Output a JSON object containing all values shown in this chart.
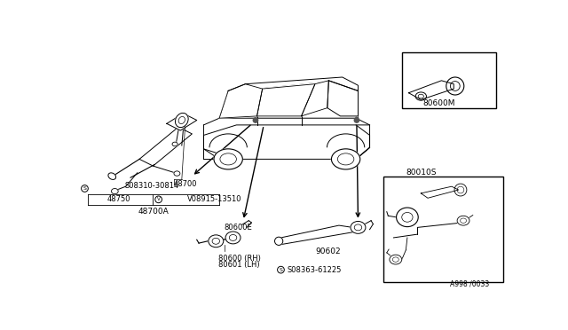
{
  "bg_color": "#ffffff",
  "text_color": "#000000",
  "fig_width": 6.4,
  "fig_height": 3.72,
  "dpi": 100,
  "labels": {
    "s08310": "S08310-30814",
    "p48700": "48700",
    "p48750": "48750",
    "v08915": "V08915-13510",
    "p48700A": "48700A",
    "p80600E": "80600E",
    "p80600": "80600 (RH)",
    "p80601": "80601 (LH)",
    "p90602": "90602",
    "s08363": "S08363-61225",
    "p80600M": "80600M",
    "p80010S": "80010S",
    "fig_num": "A998 /0033"
  }
}
